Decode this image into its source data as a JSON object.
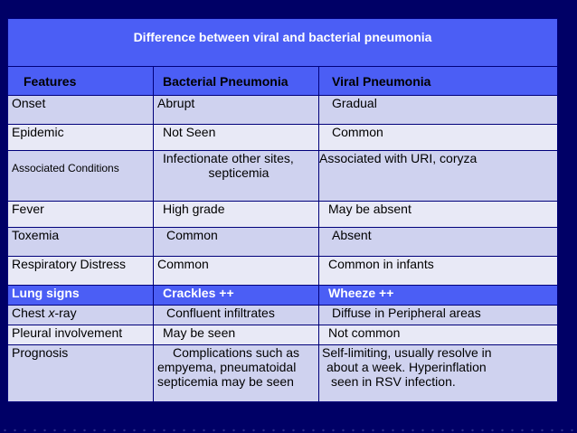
{
  "title": "Difference between viral and bacterial pneumonia",
  "headers": {
    "features": "Features",
    "bacterial": "Bacterial Pneumonia",
    "viral": "Viral Pneumonia"
  },
  "rows": [
    {
      "feature": "Onset",
      "bacterial": "Abrupt",
      "viral": "Gradual"
    },
    {
      "feature": "Epidemic",
      "bacterial": "Not Seen",
      "viral": "Common"
    },
    {
      "feature": "Associated Conditions",
      "bacterial_line1": "Infectionate other sites,",
      "bacterial_line2": "septicemia",
      "viral": "Associated with URI, coryza"
    },
    {
      "feature": "Fever",
      "bacterial": "High grade",
      "viral": "May be absent"
    },
    {
      "feature": "Toxemia",
      "bacterial": "Common",
      "viral": "Absent"
    },
    {
      "feature": "Respiratory Distress",
      "bacterial": "Common",
      "viral": "Common in infants"
    },
    {
      "feature": "Lung signs",
      "bacterial": "Crackles ++",
      "viral": "Wheeze ++"
    },
    {
      "feature_prefix": "Chest ",
      "feature_italic": "x",
      "feature_suffix": "-ray",
      "bacterial": "Confluent infiltrates",
      "viral": "Diffuse in Peripheral areas"
    },
    {
      "feature": "Pleural involvement",
      "bacterial": "May be seen",
      "viral": "Not common"
    },
    {
      "feature": "Prognosis",
      "bacterial_line1": "Complications such as",
      "bacterial_line2": "empyema, pneumatoidal",
      "bacterial_line3": "septicemia may be seen",
      "viral_line1": "Self-limiting, usually resolve in",
      "viral_line2": "about a week. Hyperinflation",
      "viral_line3": "seen in RSV infection."
    }
  ],
  "colors": {
    "background": "#000066",
    "header": "#4b5ef5",
    "row_dark": "#cfd2ef",
    "row_light": "#e8e9f6"
  }
}
